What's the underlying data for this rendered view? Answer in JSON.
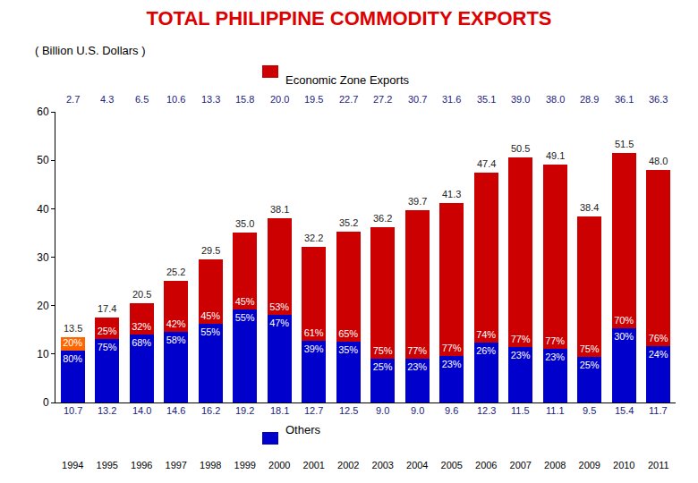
{
  "chart_data": {
    "type": "bar",
    "title": "TOTAL PHILIPPINE COMMODITY EXPORTS",
    "subtitle": "( Billion U.S. Dollars )",
    "stacked": true,
    "grid": false,
    "categories": [
      "1994",
      "1995",
      "1996",
      "1997",
      "1998",
      "1999",
      "2000",
      "2001",
      "2002",
      "2003",
      "2004",
      "2005",
      "2006",
      "2007",
      "2008",
      "2009",
      "2010",
      "2011"
    ],
    "ylim": [
      0,
      60
    ],
    "yticks": [
      0,
      10,
      20,
      30,
      40,
      50,
      60
    ],
    "total_labels": [
      "13.5",
      "17.4",
      "20.5",
      "25.2",
      "29.5",
      "35.0",
      "38.1",
      "32.2",
      "35.2",
      "36.2",
      "39.7",
      "41.3",
      "47.4",
      "50.5",
      "49.1",
      "38.4",
      "51.5",
      "48.0"
    ],
    "series": [
      {
        "name": "Others",
        "color": "#0000cc",
        "values": [
          10.7,
          13.2,
          14.0,
          14.6,
          16.2,
          19.2,
          18.1,
          12.7,
          12.5,
          9.0,
          9.0,
          9.6,
          12.3,
          11.5,
          11.1,
          9.5,
          15.4,
          11.7
        ],
        "value_labels": [
          "10.7",
          "13.2",
          "14.0",
          "14.6",
          "16.2",
          "19.2",
          "18.1",
          "12.7",
          "12.5",
          "9.0",
          "9.0",
          "9.6",
          "12.3",
          "11.5",
          "11.1",
          "9.5",
          "15.4",
          "11.7"
        ],
        "share_labels": [
          "80%",
          "75%",
          "68%",
          "58%",
          "55%",
          "55%",
          "47%",
          "39%",
          "35%",
          "25%",
          "23%",
          "23%",
          "26%",
          "23%",
          "23%",
          "25%",
          "30%",
          "24%"
        ]
      },
      {
        "name": "Economic Zone Exports",
        "color": "#cc0000",
        "colors": [
          "#ff6600",
          "#cc0000",
          "#cc0000",
          "#cc0000",
          "#cc0000",
          "#cc0000",
          "#cc0000",
          "#cc0000",
          "#cc0000",
          "#cc0000",
          "#cc0000",
          "#cc0000",
          "#cc0000",
          "#cc0000",
          "#cc0000",
          "#cc0000",
          "#cc0000",
          "#cc0000"
        ],
        "values": [
          2.7,
          4.3,
          6.5,
          10.6,
          13.3,
          15.8,
          20.0,
          19.5,
          22.7,
          27.2,
          30.7,
          31.6,
          35.1,
          39.0,
          38.0,
          28.9,
          36.1,
          36.3
        ],
        "value_labels": [
          "2.7",
          "4.3",
          "6.5",
          "10.6",
          "13.3",
          "15.8",
          "20.0",
          "19.5",
          "22.7",
          "27.2",
          "30.7",
          "31.6",
          "35.1",
          "39.0",
          "38.0",
          "28.9",
          "36.1",
          "36.3"
        ],
        "share_labels": [
          "20%",
          "25%",
          "32%",
          "42%",
          "45%",
          "45%",
          "53%",
          "61%",
          "65%",
          "75%",
          "77%",
          "77%",
          "74%",
          "77%",
          "77%",
          "75%",
          "70%",
          "76%"
        ]
      }
    ]
  }
}
